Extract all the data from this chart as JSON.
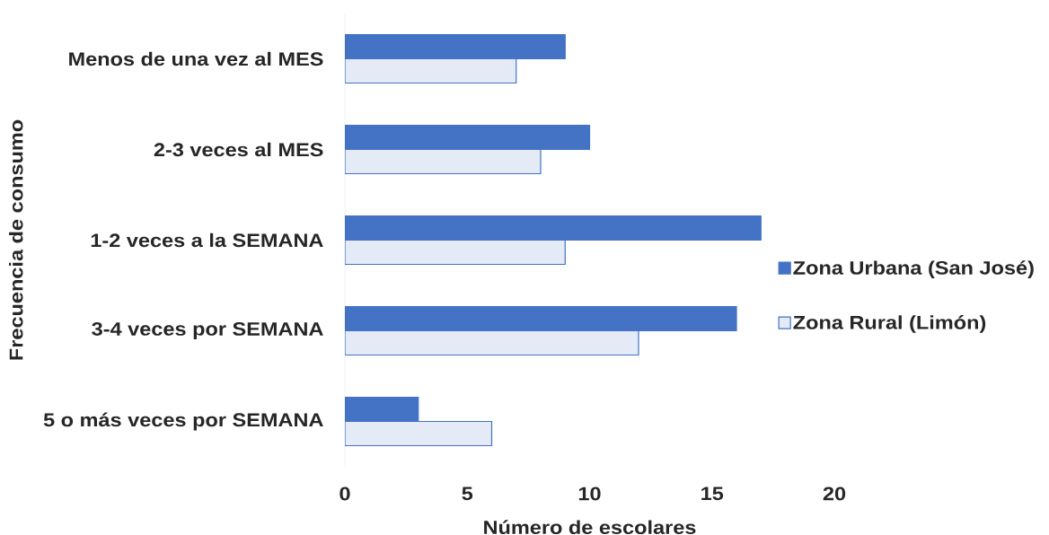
{
  "chart_data": {
    "type": "bar",
    "orientation": "horizontal",
    "xlabel": "Número de escolares",
    "ylabel": "Frecuencia de consumo",
    "categories": [
      "Menos de una vez al MES",
      "2-3 veces al MES",
      "1-2 veces a la SEMANA",
      "3-4 veces por SEMANA",
      "5 o más  veces por SEMANA"
    ],
    "series": [
      {
        "name": "Zona Urbana (San José)",
        "color": "#4472c4",
        "values": [
          9,
          10,
          17,
          16,
          3
        ]
      },
      {
        "name": "Zona Rural (Limón)",
        "color": "#e4eaf6",
        "values": [
          7,
          8,
          9,
          12,
          6
        ]
      }
    ],
    "xlim": [
      0,
      20
    ],
    "xticks": [
      0,
      5,
      10,
      15,
      20
    ],
    "legend": "right"
  }
}
